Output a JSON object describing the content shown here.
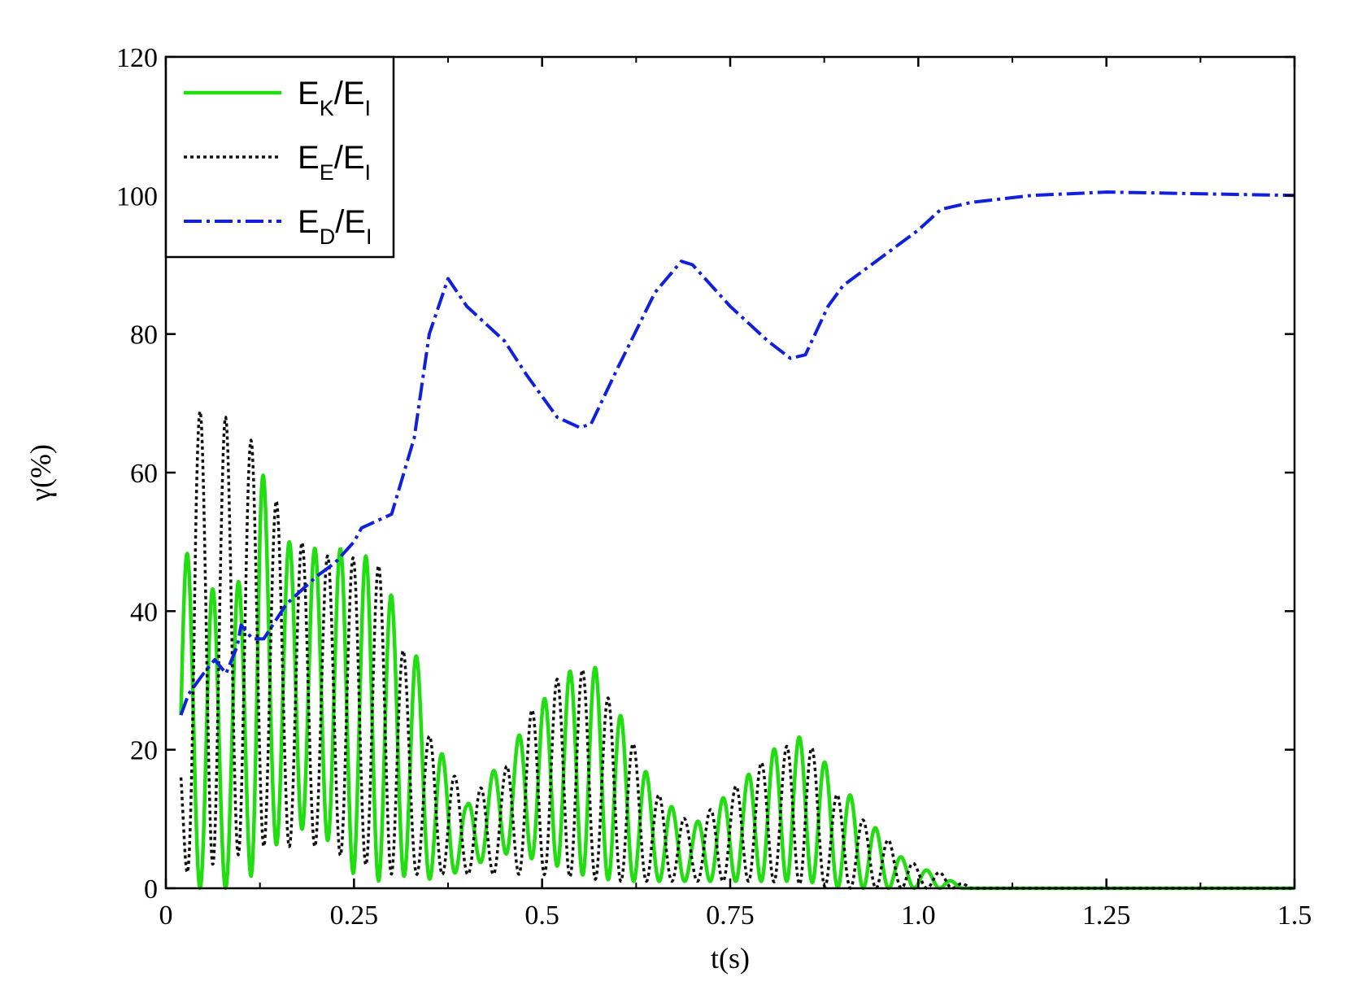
{
  "chart_data": {
    "type": "line",
    "xlabel": "t(s)",
    "ylabel": "γ(%)",
    "xlim": [
      0,
      1.5
    ],
    "ylim": [
      0,
      120
    ],
    "x_ticks": [
      0,
      0.25,
      0.5,
      0.75,
      1.0,
      1.25,
      1.5
    ],
    "x_tick_labels": [
      "0",
      "0.25",
      "0.5",
      "0.75",
      "1.0",
      "1.25",
      "1.5"
    ],
    "y_ticks": [
      0,
      20,
      40,
      60,
      80,
      100,
      120
    ],
    "y_tick_labels": [
      "0",
      "20",
      "40",
      "60",
      "80",
      "100",
      "120"
    ],
    "grid": false,
    "legend_position": "top-left",
    "series": [
      {
        "name": "EK/EI",
        "label_main": "E",
        "label_sub": "K",
        "label_mid": "/E",
        "label_sub2": "I",
        "color": "#22dd11",
        "style": "solid",
        "oscillating": true,
        "frequency_hz": 29.5,
        "phase_offset": 0.25,
        "envelope": [
          [
            0.02,
            50
          ],
          [
            0.04,
            46
          ],
          [
            0.08,
            41
          ],
          [
            0.1,
            45
          ],
          [
            0.125,
            64
          ],
          [
            0.14,
            50
          ],
          [
            0.17,
            50
          ],
          [
            0.2,
            49
          ],
          [
            0.25,
            49
          ],
          [
            0.28,
            47
          ],
          [
            0.33,
            35
          ],
          [
            0.36,
            21
          ],
          [
            0.4,
            12
          ],
          [
            0.45,
            19
          ],
          [
            0.5,
            27
          ],
          [
            0.56,
            34
          ],
          [
            0.6,
            26
          ],
          [
            0.65,
            14
          ],
          [
            0.7,
            9
          ],
          [
            0.75,
            14
          ],
          [
            0.8,
            19
          ],
          [
            0.83,
            23
          ],
          [
            0.87,
            19
          ],
          [
            0.92,
            12
          ],
          [
            0.97,
            5
          ],
          [
            1.0,
            3
          ],
          [
            1.03,
            2
          ],
          [
            1.06,
            0
          ],
          [
            1.5,
            0
          ]
        ],
        "baseline": [
          [
            0.02,
            0
          ],
          [
            0.1,
            0
          ],
          [
            0.16,
            8
          ],
          [
            0.2,
            9
          ],
          [
            0.25,
            2
          ],
          [
            0.28,
            1
          ],
          [
            0.33,
            2
          ],
          [
            0.36,
            1
          ],
          [
            0.4,
            3
          ],
          [
            0.45,
            5
          ],
          [
            0.5,
            4
          ],
          [
            0.55,
            2
          ],
          [
            0.6,
            1
          ],
          [
            0.65,
            1
          ],
          [
            0.7,
            1
          ],
          [
            0.75,
            1
          ],
          [
            0.8,
            1
          ],
          [
            0.85,
            1
          ],
          [
            0.9,
            0
          ],
          [
            1.0,
            0
          ],
          [
            1.5,
            0
          ]
        ]
      },
      {
        "name": "EE/EI",
        "label_main": "E",
        "label_sub": "E",
        "label_mid": "/E",
        "label_sub2": "I",
        "color": "#111111",
        "style": "dotted",
        "oscillating": true,
        "frequency_hz": 29.5,
        "phase_offset": 0.75,
        "envelope": [
          [
            0.02,
            30
          ],
          [
            0.04,
            69
          ],
          [
            0.08,
            68
          ],
          [
            0.12,
            64
          ],
          [
            0.16,
            52
          ],
          [
            0.2,
            48
          ],
          [
            0.24,
            48
          ],
          [
            0.3,
            46
          ],
          [
            0.33,
            24
          ],
          [
            0.36,
            21
          ],
          [
            0.4,
            13
          ],
          [
            0.45,
            17
          ],
          [
            0.5,
            29
          ],
          [
            0.55,
            32
          ],
          [
            0.6,
            26
          ],
          [
            0.65,
            14
          ],
          [
            0.7,
            9
          ],
          [
            0.75,
            14
          ],
          [
            0.8,
            19
          ],
          [
            0.85,
            22
          ],
          [
            0.9,
            12
          ],
          [
            0.95,
            8
          ],
          [
            1.0,
            3
          ],
          [
            1.04,
            2
          ],
          [
            1.07,
            0
          ],
          [
            1.5,
            0
          ]
        ],
        "baseline": [
          [
            0.02,
            2
          ],
          [
            0.08,
            4
          ],
          [
            0.12,
            6
          ],
          [
            0.16,
            6
          ],
          [
            0.2,
            6
          ],
          [
            0.25,
            4
          ],
          [
            0.3,
            2
          ],
          [
            0.35,
            2
          ],
          [
            0.4,
            2
          ],
          [
            0.5,
            2
          ],
          [
            0.6,
            1
          ],
          [
            0.7,
            1
          ],
          [
            0.8,
            1
          ],
          [
            0.9,
            0
          ],
          [
            1.0,
            0
          ],
          [
            1.5,
            0
          ]
        ]
      },
      {
        "name": "ED/EI",
        "label_main": "E",
        "label_sub": "D",
        "label_mid": "/E",
        "label_sub2": "I",
        "color": "#1020dd",
        "style": "dashdot",
        "oscillating": false,
        "x": [
          0.02,
          0.03,
          0.05,
          0.065,
          0.08,
          0.095,
          0.1,
          0.115,
          0.13,
          0.16,
          0.2,
          0.225,
          0.25,
          0.26,
          0.3,
          0.33,
          0.35,
          0.375,
          0.4,
          0.45,
          0.48,
          0.52,
          0.55,
          0.565,
          0.6,
          0.65,
          0.685,
          0.7,
          0.75,
          0.8,
          0.83,
          0.85,
          0.88,
          0.9,
          0.95,
          1.0,
          1.03,
          1.07,
          1.15,
          1.25,
          1.35,
          1.5
        ],
        "y": [
          25,
          28,
          31,
          33,
          31,
          35,
          38,
          36,
          36,
          41,
          45,
          47,
          50,
          52,
          54,
          65,
          80,
          88,
          84,
          79,
          74,
          68,
          66.5,
          67,
          75,
          86,
          90.5,
          90,
          84,
          79,
          76.5,
          77,
          84,
          87,
          91,
          95,
          98,
          99,
          100,
          100.5,
          100.3,
          100
        ]
      }
    ]
  }
}
